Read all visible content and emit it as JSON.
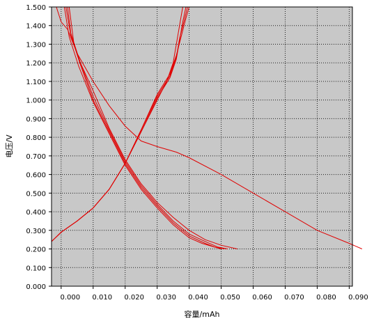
{
  "chart_data": {
    "type": "line",
    "title": "",
    "xlabel": "容量/mAh",
    "ylabel": "电压/V",
    "xlim": [
      -0.003,
      0.091
    ],
    "ylim": [
      0.0,
      1.5
    ],
    "x_ticks": [
      "0.000",
      "0.010",
      "0.020",
      "0.030",
      "0.040",
      "0.050",
      "0.060",
      "0.070",
      "0.080",
      "0.090"
    ],
    "y_ticks": [
      "0.000",
      "0.100",
      "0.200",
      "0.300",
      "0.400",
      "0.500",
      "0.600",
      "0.700",
      "0.800",
      "0.900",
      "1.000",
      "1.100",
      "1.200",
      "1.300",
      "1.400",
      "1.500"
    ],
    "grid": true,
    "background_color": "#c8c8c8",
    "line_color": "#e00000",
    "series": [
      {
        "points": [
          [
            -0.0015,
            1.5
          ],
          [
            0.0,
            1.42
          ],
          [
            0.002,
            1.38
          ],
          [
            0.005,
            1.25
          ],
          [
            0.01,
            1.1
          ],
          [
            0.015,
            0.97
          ],
          [
            0.02,
            0.86
          ],
          [
            0.025,
            0.78
          ],
          [
            0.03,
            0.75
          ],
          [
            0.036,
            0.72
          ],
          [
            0.04,
            0.69
          ],
          [
            0.05,
            0.6
          ],
          [
            0.06,
            0.5
          ],
          [
            0.07,
            0.4
          ],
          [
            0.08,
            0.3
          ],
          [
            0.09,
            0.23
          ],
          [
            0.094,
            0.2
          ]
        ]
      },
      {
        "points": [
          [
            0.0025,
            1.5
          ],
          [
            0.004,
            1.3
          ],
          [
            0.006,
            1.2
          ],
          [
            0.01,
            1.05
          ],
          [
            0.015,
            0.85
          ],
          [
            0.02,
            0.68
          ],
          [
            0.025,
            0.55
          ],
          [
            0.03,
            0.45
          ],
          [
            0.035,
            0.37
          ],
          [
            0.04,
            0.3
          ],
          [
            0.045,
            0.25
          ],
          [
            0.05,
            0.22
          ],
          [
            0.055,
            0.2
          ]
        ]
      },
      {
        "points": [
          [
            0.002,
            1.5
          ],
          [
            0.003,
            1.36
          ],
          [
            0.006,
            1.2
          ],
          [
            0.01,
            1.02
          ],
          [
            0.015,
            0.84
          ],
          [
            0.02,
            0.67
          ],
          [
            0.025,
            0.54
          ],
          [
            0.03,
            0.44
          ],
          [
            0.035,
            0.35
          ],
          [
            0.04,
            0.28
          ],
          [
            0.045,
            0.24
          ],
          [
            0.049,
            0.21
          ],
          [
            0.052,
            0.2
          ]
        ]
      },
      {
        "points": [
          [
            0.0015,
            1.5
          ],
          [
            0.003,
            1.35
          ],
          [
            0.006,
            1.19
          ],
          [
            0.01,
            1.0
          ],
          [
            0.015,
            0.83
          ],
          [
            0.02,
            0.66
          ],
          [
            0.025,
            0.53
          ],
          [
            0.03,
            0.43
          ],
          [
            0.035,
            0.34
          ],
          [
            0.04,
            0.27
          ],
          [
            0.045,
            0.23
          ],
          [
            0.048,
            0.21
          ],
          [
            0.051,
            0.2
          ]
        ]
      },
      {
        "points": [
          [
            0.001,
            1.5
          ],
          [
            0.0025,
            1.34
          ],
          [
            0.0055,
            1.18
          ],
          [
            0.01,
            0.99
          ],
          [
            0.015,
            0.82
          ],
          [
            0.02,
            0.65
          ],
          [
            0.025,
            0.52
          ],
          [
            0.03,
            0.42
          ],
          [
            0.035,
            0.33
          ],
          [
            0.04,
            0.26
          ],
          [
            0.044,
            0.23
          ],
          [
            0.048,
            0.21
          ],
          [
            0.05,
            0.2
          ]
        ]
      },
      {
        "points": [
          [
            -0.003,
            0.24
          ],
          [
            0.0,
            0.29
          ],
          [
            0.005,
            0.35
          ],
          [
            0.01,
            0.42
          ],
          [
            0.015,
            0.52
          ],
          [
            0.02,
            0.66
          ],
          [
            0.025,
            0.83
          ],
          [
            0.03,
            1.0
          ],
          [
            0.033,
            1.1
          ],
          [
            0.035,
            1.2
          ],
          [
            0.036,
            1.3
          ],
          [
            0.037,
            1.4
          ],
          [
            0.038,
            1.5
          ]
        ]
      },
      {
        "points": [
          [
            -0.003,
            0.24
          ],
          [
            0.0,
            0.29
          ],
          [
            0.005,
            0.35
          ],
          [
            0.01,
            0.42
          ],
          [
            0.015,
            0.52
          ],
          [
            0.02,
            0.66
          ],
          [
            0.025,
            0.83
          ],
          [
            0.03,
            1.01
          ],
          [
            0.034,
            1.12
          ],
          [
            0.036,
            1.22
          ],
          [
            0.037,
            1.32
          ],
          [
            0.038,
            1.42
          ],
          [
            0.039,
            1.5
          ]
        ]
      },
      {
        "points": [
          [
            -0.003,
            0.24
          ],
          [
            0.0,
            0.29
          ],
          [
            0.005,
            0.35
          ],
          [
            0.01,
            0.42
          ],
          [
            0.015,
            0.52
          ],
          [
            0.02,
            0.66
          ],
          [
            0.025,
            0.84
          ],
          [
            0.03,
            1.02
          ],
          [
            0.034,
            1.13
          ],
          [
            0.036,
            1.23
          ],
          [
            0.037,
            1.33
          ],
          [
            0.0385,
            1.43
          ],
          [
            0.0395,
            1.5
          ]
        ]
      },
      {
        "points": [
          [
            -0.003,
            0.24
          ],
          [
            0.0,
            0.29
          ],
          [
            0.005,
            0.35
          ],
          [
            0.01,
            0.42
          ],
          [
            0.015,
            0.52
          ],
          [
            0.02,
            0.66
          ],
          [
            0.025,
            0.84
          ],
          [
            0.03,
            1.03
          ],
          [
            0.034,
            1.14
          ],
          [
            0.036,
            1.24
          ],
          [
            0.0375,
            1.34
          ],
          [
            0.039,
            1.44
          ],
          [
            0.04,
            1.5
          ]
        ]
      }
    ]
  }
}
